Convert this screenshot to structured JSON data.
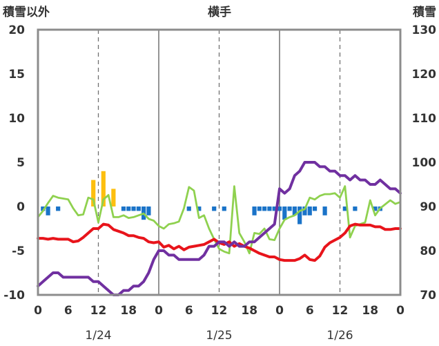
{
  "chart_data": {
    "type": "line",
    "title": "横手",
    "left_axis_label": "積雪以外",
    "right_axis_label": "積雪",
    "left_ylim": [
      -10,
      20
    ],
    "right_ylim": [
      70,
      130
    ],
    "left_ticks": [
      "20",
      "15",
      "10",
      "5",
      "0",
      "-5",
      "-10"
    ],
    "right_ticks": [
      "130",
      "120",
      "110",
      "100",
      "90",
      "80",
      "70"
    ],
    "x_ticks": [
      "0",
      "6",
      "12",
      "18",
      "0",
      "6",
      "12",
      "18",
      "0",
      "6",
      "12",
      "18",
      "0"
    ],
    "date_labels": [
      "1/24",
      "1/25",
      "1/26"
    ],
    "xlim": [
      0,
      72
    ],
    "grid": true,
    "colors": {
      "temperature": "#e8141b",
      "sunshine": "#fdbf0f",
      "wind": "#8fd14f",
      "precip_bars": "#1a73c8",
      "snow_depth": "#7030a0",
      "frame": "#8c8c8c"
    },
    "series": [
      {
        "key": "temperature",
        "axis": "left",
        "x": [
          0,
          1,
          2,
          3,
          4,
          5,
          6,
          7,
          8,
          9,
          10,
          11,
          12,
          13,
          14,
          15,
          16,
          17,
          18,
          19,
          20,
          21,
          22,
          23,
          24,
          25,
          26,
          27,
          28,
          29,
          30,
          31,
          32,
          33,
          34,
          35,
          36,
          37,
          38,
          39,
          40,
          41,
          42,
          43,
          44,
          45,
          46,
          47,
          48,
          49,
          50,
          51,
          52,
          53,
          54,
          55,
          56,
          57,
          58,
          59,
          60,
          61,
          62,
          63,
          64,
          65,
          66,
          67,
          68,
          69,
          70,
          71,
          72
        ],
        "y": [
          -3.6,
          -3.6,
          -3.7,
          -3.6,
          -3.7,
          -3.7,
          -3.7,
          -4.0,
          -3.9,
          -3.5,
          -3.0,
          -2.5,
          -2.5,
          -2.0,
          -2.1,
          -2.6,
          -2.8,
          -3.0,
          -3.3,
          -3.3,
          -3.5,
          -3.6,
          -4.0,
          -4.1,
          -4.0,
          -4.6,
          -4.4,
          -4.8,
          -4.5,
          -4.9,
          -4.6,
          -4.5,
          -4.4,
          -4.3,
          -4.0,
          -3.7,
          -4.1,
          -4.3,
          -4.0,
          -4.5,
          -4.2,
          -4.5,
          -4.7,
          -5.0,
          -5.3,
          -5.5,
          -5.7,
          -5.7,
          -6.0,
          -6.1,
          -6.1,
          -6.1,
          -5.9,
          -5.5,
          -6.0,
          -6.1,
          -5.6,
          -4.6,
          -4.1,
          -3.8,
          -3.5,
          -3.0,
          -2.2,
          -2.0,
          -2.1,
          -2.1,
          -2.1,
          -2.3,
          -2.3,
          -2.6,
          -2.6,
          -2.5,
          -2.5
        ]
      },
      {
        "key": "wind",
        "axis": "left",
        "x": [
          0,
          1,
          2,
          3,
          4,
          6,
          7,
          8,
          9,
          10,
          11,
          12,
          13,
          14,
          15,
          16,
          17,
          18,
          19,
          20,
          21,
          22,
          23,
          24,
          25,
          26,
          27,
          28,
          29,
          30,
          31,
          32,
          33,
          34,
          35,
          36,
          37,
          38,
          39,
          40,
          41,
          42,
          43,
          44,
          45,
          46,
          47,
          48,
          49,
          50,
          51,
          52,
          53,
          54,
          55,
          56,
          57,
          58,
          59,
          60,
          61,
          62,
          63,
          64,
          65,
          66,
          67,
          68,
          70,
          71,
          72
        ],
        "y": [
          -1.2,
          -0.5,
          0.4,
          1.2,
          1.0,
          0.8,
          -0.2,
          -1.0,
          -0.9,
          1.0,
          0.8,
          -1.8,
          0.8,
          1.3,
          -1.2,
          -1.2,
          -1.0,
          -1.3,
          -1.2,
          -1.0,
          -0.8,
          -1.4,
          -1.6,
          -2.2,
          -2.5,
          -2.0,
          -1.9,
          -1.7,
          -0.2,
          2.2,
          1.8,
          -1.3,
          -1.0,
          -2.5,
          -3.7,
          -4.8,
          -5.1,
          -5.3,
          2.3,
          -3.0,
          -4.0,
          -5.3,
          -3.0,
          -3.1,
          -2.5,
          -3.7,
          -3.8,
          -2.5,
          -1.5,
          -1.2,
          -1.0,
          -0.5,
          -0.3,
          1.0,
          0.8,
          1.2,
          1.4,
          1.4,
          1.5,
          1.0,
          2.3,
          -3.5,
          -2.2,
          -2.0,
          -1.8,
          0.7,
          -1.0,
          -0.2,
          0.7,
          0.3,
          0.5
        ]
      },
      {
        "key": "snow_depth",
        "axis": "right",
        "x": [
          0,
          1,
          2,
          3,
          4,
          5,
          6,
          7,
          8,
          9,
          10,
          11,
          12,
          13,
          14,
          15,
          16,
          17,
          18,
          19,
          20,
          21,
          22,
          23,
          24,
          25,
          26,
          27,
          28,
          29,
          30,
          31,
          32,
          33,
          34,
          35,
          36,
          37,
          38,
          39,
          40,
          41,
          42,
          43,
          44,
          45,
          46,
          47,
          48,
          49,
          50,
          51,
          52,
          53,
          54,
          55,
          56,
          57,
          58,
          59,
          60,
          61,
          62,
          63,
          64,
          65,
          66,
          67,
          68,
          69,
          70,
          71,
          72
        ],
        "y": [
          72,
          73,
          74,
          75,
          75,
          74,
          74,
          74,
          74,
          74,
          74,
          73,
          73,
          72,
          71,
          70,
          70,
          71,
          71,
          72,
          72,
          73,
          75,
          78,
          80,
          80,
          79,
          79,
          78,
          78,
          78,
          78,
          78,
          79,
          81,
          81,
          82,
          82,
          81,
          82,
          81,
          81,
          82,
          82,
          83,
          84,
          85,
          86,
          94,
          93,
          94,
          97,
          98,
          100,
          100,
          100,
          99,
          99,
          98,
          98,
          97,
          97,
          96,
          97,
          96,
          96,
          95,
          95,
          96,
          95,
          94,
          94,
          93
        ],
        "comment_removed": ""
      }
    ],
    "bars": [
      {
        "key": "sunshine",
        "axis": "left",
        "x": [
          11,
          13,
          15
        ],
        "values": [
          3.0,
          4.0,
          2.0
        ]
      },
      {
        "key": "precip",
        "axis": "left",
        "x": [
          1,
          2,
          4,
          17,
          18,
          19,
          20,
          21,
          22,
          30,
          32,
          35,
          37,
          43,
          44,
          45,
          46,
          47,
          48,
          49,
          50,
          51,
          52,
          53,
          54,
          55,
          57,
          61,
          63,
          67,
          68
        ],
        "values": [
          -0.5,
          -1.0,
          -0.5,
          -0.5,
          -0.5,
          -0.5,
          -0.5,
          -1.5,
          -1.0,
          -0.5,
          -0.5,
          -0.5,
          -0.5,
          -1.0,
          -0.5,
          -0.5,
          -0.5,
          -0.5,
          -0.5,
          -1.5,
          -0.5,
          -1.0,
          -2.0,
          -1.0,
          -1.0,
          -0.5,
          -1.0,
          -0.5,
          -0.5,
          -0.5,
          -0.5
        ]
      }
    ]
  }
}
